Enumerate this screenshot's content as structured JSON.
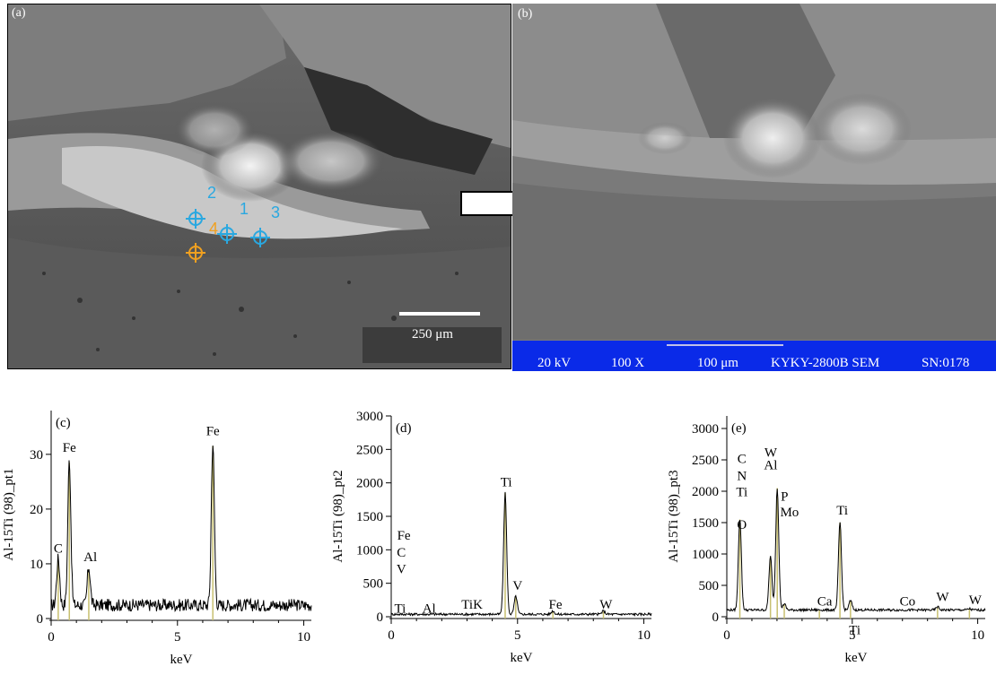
{
  "panels": {
    "a": {
      "label": "(a)",
      "scale_bar": "250 μm",
      "markers": [
        {
          "label": "1",
          "color": "#2aa8e0"
        },
        {
          "label": "2",
          "color": "#2aa8e0"
        },
        {
          "label": "3",
          "color": "#2aa8e0"
        },
        {
          "label": "4",
          "color": "#f0a020"
        }
      ]
    },
    "b": {
      "label": "(b)",
      "info_bar": {
        "voltage": "20 kV",
        "magnification": "100 X",
        "scale": "100 μm",
        "instrument": "KYKY-2800B SEM",
        "serial": "SN:0178",
        "color": "#0a2ae8"
      }
    }
  },
  "chart_data": [
    {
      "id": "c",
      "type": "line",
      "panel_label": "(c)",
      "ylabel": "Al-15Ti (98)_pt1",
      "xlabel": "keV",
      "xlim": [
        0,
        10.3
      ],
      "ylim": [
        0,
        38
      ],
      "xticks": [
        0,
        5,
        10
      ],
      "yticks": [
        0,
        10,
        20,
        30
      ],
      "peaks": [
        {
          "x": 0.28,
          "y": 10.5
        },
        {
          "x": 0.72,
          "y": 28.5
        },
        {
          "x": 1.49,
          "y": 9
        },
        {
          "x": 6.4,
          "y": 31.5
        }
      ],
      "baseline": 2,
      "annotations": [
        {
          "text": "C",
          "x": 0.28,
          "y": 12
        },
        {
          "text": "Fe",
          "x": 0.72,
          "y": 30.5
        },
        {
          "text": "Al",
          "x": 1.55,
          "y": 10.5
        },
        {
          "text": "Fe",
          "x": 6.4,
          "y": 33.5
        }
      ]
    },
    {
      "id": "d",
      "type": "line",
      "panel_label": "(d)",
      "ylabel": "Al-15Ti (98)_pt2",
      "xlabel": "keV",
      "xlim": [
        0,
        10.3
      ],
      "ylim": [
        0,
        3000
      ],
      "xticks": [
        0,
        5,
        10
      ],
      "yticks": [
        0,
        500,
        1000,
        1500,
        2000,
        2500,
        3000
      ],
      "peaks": [
        {
          "x": 4.51,
          "y": 1850
        },
        {
          "x": 4.93,
          "y": 300
        },
        {
          "x": 6.4,
          "y": 80
        },
        {
          "x": 8.4,
          "y": 80
        }
      ],
      "baseline": 30,
      "annotations": [
        {
          "text": "Fe",
          "x": 0.5,
          "y": 1150
        },
        {
          "text": "C",
          "x": 0.4,
          "y": 900
        },
        {
          "text": "V",
          "x": 0.4,
          "y": 650
        },
        {
          "text": "Ti",
          "x": 0.35,
          "y": 60
        },
        {
          "text": "Al",
          "x": 1.5,
          "y": 60
        },
        {
          "text": "TiK",
          "x": 3.2,
          "y": 120
        },
        {
          "text": "Ti",
          "x": 4.55,
          "y": 1950
        },
        {
          "text": "V",
          "x": 5.0,
          "y": 400
        },
        {
          "text": "Fe",
          "x": 6.5,
          "y": 120
        },
        {
          "text": "W",
          "x": 8.5,
          "y": 120
        }
      ]
    },
    {
      "id": "e",
      "type": "line",
      "panel_label": "(e)",
      "ylabel": "Al-15Ti (98)_pt3",
      "xlabel": "keV",
      "xlim": [
        0,
        10.3
      ],
      "ylim": [
        0,
        3200
      ],
      "xticks": [
        0,
        5,
        10
      ],
      "yticks": [
        0,
        500,
        1000,
        1500,
        2000,
        2500,
        3000
      ],
      "peaks": [
        {
          "x": 0.52,
          "y": 1550
        },
        {
          "x": 1.74,
          "y": 950
        },
        {
          "x": 2.01,
          "y": 2050
        },
        {
          "x": 2.29,
          "y": 200
        },
        {
          "x": 4.51,
          "y": 1500
        },
        {
          "x": 4.93,
          "y": 250
        },
        {
          "x": 3.69,
          "y": 100
        },
        {
          "x": 8.4,
          "y": 150
        },
        {
          "x": 9.67,
          "y": 120
        }
      ],
      "baseline": 100,
      "annotations": [
        {
          "text": "W",
          "x": 1.75,
          "y": 2550
        },
        {
          "text": "C",
          "x": 0.6,
          "y": 2450
        },
        {
          "text": "Al",
          "x": 1.75,
          "y": 2350
        },
        {
          "text": "N",
          "x": 0.6,
          "y": 2180
        },
        {
          "text": "Ti",
          "x": 0.6,
          "y": 1920
        },
        {
          "text": "P",
          "x": 2.3,
          "y": 1850
        },
        {
          "text": "Mo",
          "x": 2.5,
          "y": 1600
        },
        {
          "text": "O",
          "x": 0.6,
          "y": 1400
        },
        {
          "text": "Ti",
          "x": 4.6,
          "y": 1630
        },
        {
          "text": "Ca",
          "x": 3.9,
          "y": 180
        },
        {
          "text": "Ti",
          "x": 5.1,
          "y": -280
        },
        {
          "text": "Co",
          "x": 7.2,
          "y": 180
        },
        {
          "text": "W",
          "x": 8.6,
          "y": 250
        },
        {
          "text": "W",
          "x": 9.9,
          "y": 200
        }
      ]
    }
  ]
}
